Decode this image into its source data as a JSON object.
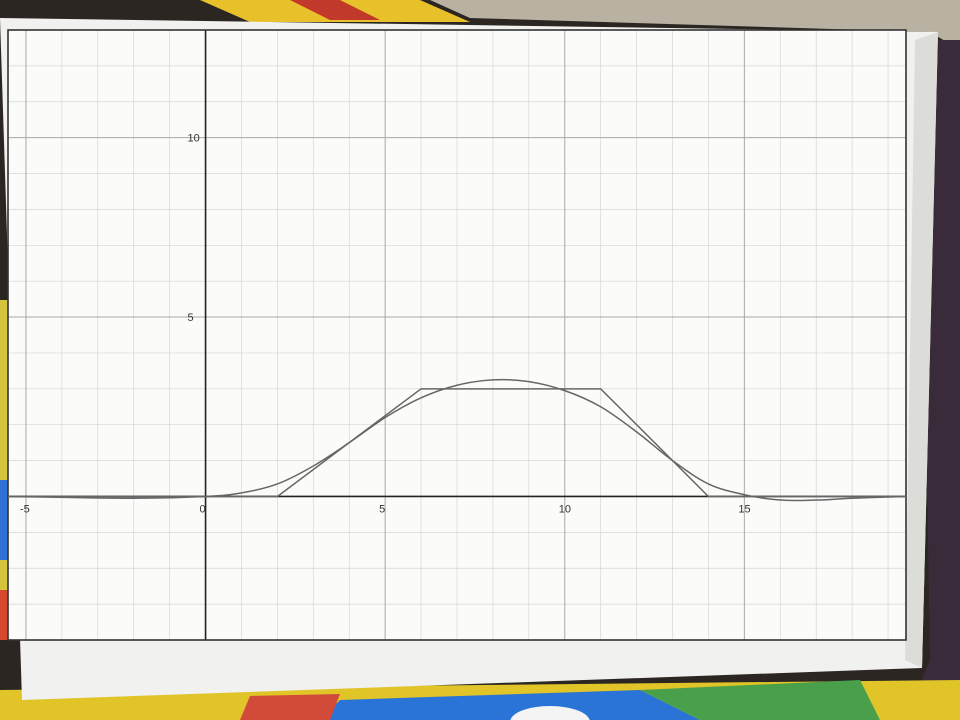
{
  "chart_data": {
    "type": "line",
    "title": "",
    "xlabel": "",
    "ylabel": "",
    "xlim": [
      -5.5,
      19.5
    ],
    "ylim": [
      -4,
      13
    ],
    "grid": true,
    "x_ticks": [
      -5,
      0,
      5,
      10,
      15
    ],
    "x_tick_labels": [
      "-5",
      "0",
      "5",
      "10",
      "15"
    ],
    "y_ticks": [
      5,
      10
    ],
    "y_tick_labels": [
      "5",
      "10"
    ],
    "series": [
      {
        "style": "piecewise-linear",
        "x": [
          -5.5,
          2,
          6,
          11,
          14,
          19.5
        ],
        "y": [
          0,
          0,
          3,
          3,
          0,
          0
        ]
      },
      {
        "style": "smooth",
        "x": [
          -5.5,
          -2,
          0,
          1,
          2,
          3,
          4,
          5,
          6,
          7,
          8,
          9,
          10,
          11,
          12,
          13,
          14,
          15,
          16,
          17,
          18,
          19.5
        ],
        "y": [
          0,
          -0.05,
          0,
          0.1,
          0.35,
          0.85,
          1.5,
          2.2,
          2.75,
          3.1,
          3.25,
          3.2,
          2.95,
          2.5,
          1.8,
          1.0,
          0.35,
          0.05,
          -0.1,
          -0.1,
          -0.05,
          0
        ]
      }
    ]
  }
}
